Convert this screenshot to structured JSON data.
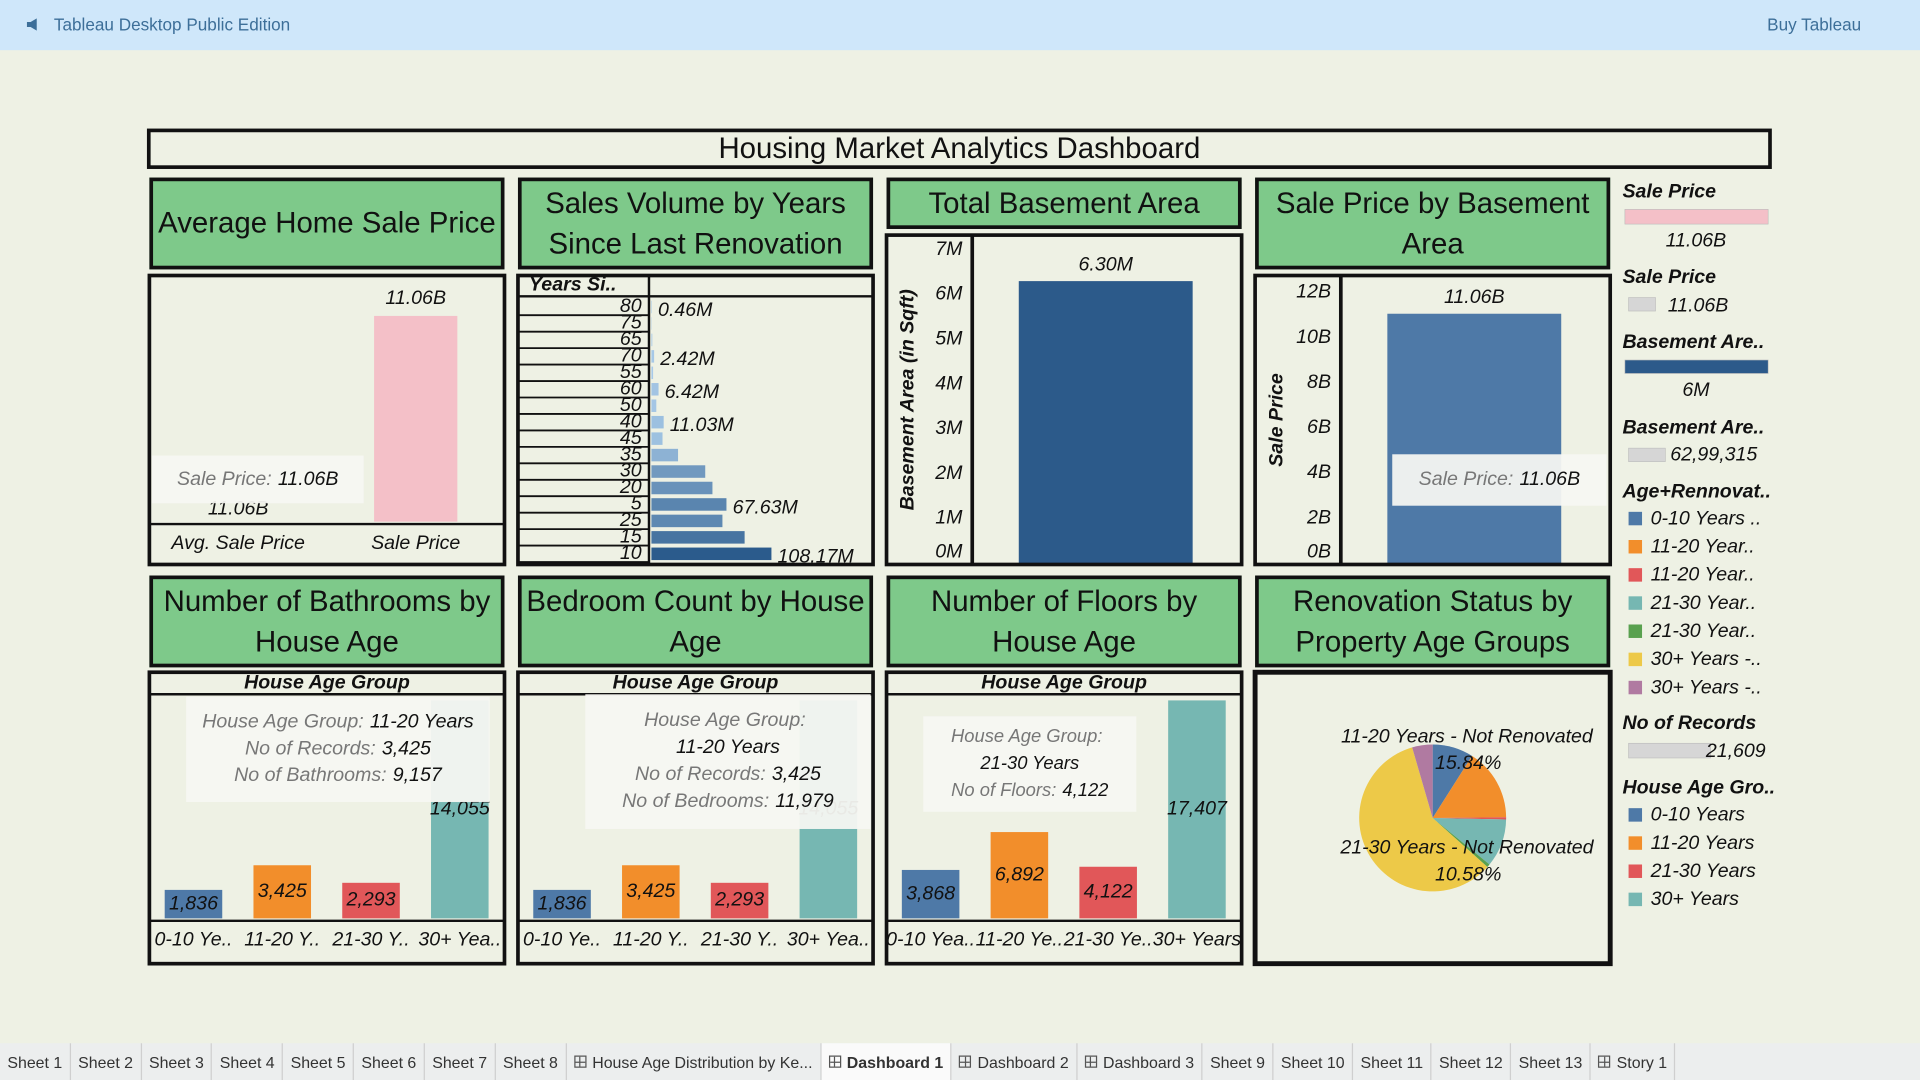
{
  "header": {
    "app": "Tableau Desktop Public Edition",
    "action": "Buy Tableau"
  },
  "dashboard_title": "Housing Market Analytics Dashboard",
  "chart_data": [
    {
      "type": "bar",
      "title": "Average Home Sale Price",
      "categories": [
        "Avg. Sale Price",
        "Sale Price"
      ],
      "values": [
        null,
        11.06
      ],
      "value_labels": [
        "11.06B",
        "11.06B"
      ],
      "color": "#f4c0c8",
      "tooltip": [
        [
          "Sale Price:",
          "11.06B"
        ]
      ]
    },
    {
      "type": "barh",
      "title": "Sales Volume by Years Since Last Renovation",
      "header": "Years Si..",
      "categories": [
        "80",
        "75",
        "65",
        "70",
        "55",
        "60",
        "50",
        "40",
        "45",
        "35",
        "30",
        "20",
        "5",
        "25",
        "15",
        "10"
      ],
      "values": [
        0.46,
        0.3,
        0.8,
        2.42,
        1.5,
        6.42,
        4.4,
        11.03,
        10,
        24,
        48.5,
        55,
        67.63,
        64,
        84,
        108.17
      ],
      "value_labels": [
        "0.46M",
        null,
        null,
        "2.42M",
        null,
        "6.42M",
        null,
        "11.03M",
        null,
        null,
        null,
        null,
        "67.63M",
        null,
        null,
        "108.17M"
      ],
      "color_range": [
        "#a9cbe9",
        "#2b5b8c"
      ]
    },
    {
      "type": "bar",
      "title": "Total Basement Area",
      "ylabel": "Basement Area (in Sqft)",
      "categories": [
        null
      ],
      "values": [
        6.3
      ],
      "value_labels": [
        "6.30M"
      ],
      "color": "#2c5a8a",
      "ylim": [
        0,
        7.3
      ],
      "yticks": [
        {
          "value": 0,
          "label": "0M"
        },
        {
          "value": 1,
          "label": "1M"
        },
        {
          "value": 2,
          "label": "2M"
        },
        {
          "value": 3,
          "label": "3M"
        },
        {
          "value": 4,
          "label": "4M"
        },
        {
          "value": 5,
          "label": "5M"
        },
        {
          "value": 6,
          "label": "6M"
        },
        {
          "value": 7,
          "label": "7M"
        }
      ]
    },
    {
      "type": "bar",
      "title": "Sale Price by Basement Area",
      "ylabel": "Sale Price",
      "categories": [
        null
      ],
      "values": [
        11.06
      ],
      "value_labels": [
        "11.06B"
      ],
      "color": "#4e79a7",
      "ylim": [
        0,
        12.7
      ],
      "yticks": [
        {
          "value": 0,
          "label": "0B"
        },
        {
          "value": 2,
          "label": "2B"
        },
        {
          "value": 4,
          "label": "4B"
        },
        {
          "value": 6,
          "label": "6B"
        },
        {
          "value": 8,
          "label": "8B"
        },
        {
          "value": 10,
          "label": "10B"
        },
        {
          "value": 12,
          "label": "12B"
        }
      ],
      "tooltip": [
        [
          "Sale Price:",
          "11.06B"
        ]
      ]
    },
    {
      "type": "bar",
      "title": "Number of Bathrooms by House Age",
      "header": "House Age Group",
      "categories": [
        "0-10 Ye..",
        "11-20 Y..",
        "21-30 Y..",
        "30+ Yea.."
      ],
      "values": [
        1836,
        3425,
        2293,
        14055
      ],
      "value_labels": [
        "1,836",
        "3,425",
        "2,293",
        "14,055"
      ],
      "colors": [
        "#4e79a7",
        "#f28e2b",
        "#e15759",
        "#76b7b2"
      ],
      "tooltip": [
        [
          "House Age Group:",
          "11-20 Years"
        ],
        [
          "No of Records:",
          "3,425"
        ],
        [
          "No of Bathrooms:",
          "9,157"
        ]
      ]
    },
    {
      "type": "bar",
      "title": "Bedroom Count by House Age",
      "header": "House Age Group",
      "categories": [
        "0-10 Ye..",
        "11-20 Y..",
        "21-30 Y..",
        "30+ Yea.."
      ],
      "values": [
        1836,
        3425,
        2293,
        14055
      ],
      "value_labels": [
        "1,836",
        "3,425",
        "2,293",
        "14,055"
      ],
      "colors": [
        "#4e79a7",
        "#f28e2b",
        "#e15759",
        "#76b7b2"
      ],
      "tooltip": [
        [
          "House Age Group:",
          "11-20 Years"
        ],
        [
          "No of Records:",
          "3,425"
        ],
        [
          "No of Bedrooms:",
          "11,979"
        ]
      ]
    },
    {
      "type": "bar",
      "title": "Number of Floors by House Age",
      "header": "House Age Group",
      "categories": [
        "0-10 Yea..",
        "11-20 Ye..",
        "21-30 Ye..",
        "30+ Years"
      ],
      "values": [
        3868,
        6892,
        4122,
        17407
      ],
      "value_labels": [
        "3,868",
        "6,892",
        "4,122",
        "17,407"
      ],
      "colors": [
        "#4e79a7",
        "#f28e2b",
        "#e15759",
        "#76b7b2"
      ],
      "tooltip": [
        [
          "House Age Group:",
          "21-30 Years"
        ],
        [
          "No of Floors:",
          "4,122"
        ]
      ]
    },
    {
      "type": "pie",
      "title": "Renovation Status by Property Age Groups",
      "categories": [
        "0-10 Years ..",
        "11-20 Year..",
        "11-20 Year..",
        "21-30 Year..",
        "21-30 Year..",
        "30+ Years -..",
        "30+ Years -.."
      ],
      "values": [
        9.0,
        15.84,
        0.5,
        10.58,
        0.7,
        58.88,
        4.5
      ],
      "value_labels": [
        null,
        "15.84%",
        null,
        "10.58%",
        null,
        null,
        null
      ],
      "slice_labels": [
        null,
        "11-20 Years - Not Renovated",
        null,
        "21-30 Years - Not Renovated",
        null,
        null,
        null
      ],
      "colors": [
        "#4e79a7",
        "#f28e2b",
        "#e15759",
        "#76b7b2",
        "#59a14f",
        "#edc948",
        "#b07aa1"
      ]
    }
  ],
  "legends": [
    {
      "title": "Sale Price",
      "color": "#f4c0c8",
      "label": "11.06B"
    },
    {
      "title": "Sale Price",
      "color": "#d6d6d6",
      "label": "11.06B"
    },
    {
      "title": "Basement Are..",
      "color": "#2c5a8a",
      "label": "6M"
    },
    {
      "title": "Basement Are..",
      "color": "#d6d6d6",
      "label": "62,99,315"
    },
    {
      "title": "Age+Rennovat.."
    },
    {
      "title": "No of Records",
      "color": "#d6d6d6",
      "label": "21,609"
    },
    {
      "title": "House Age Gro..",
      "items": [
        {
          "name": "0-10 Years",
          "color": "#4e79a7"
        },
        {
          "name": "11-20 Years",
          "color": "#f28e2b"
        },
        {
          "name": "21-30 Years",
          "color": "#e15759"
        },
        {
          "name": "30+ Years",
          "color": "#76b7b2"
        }
      ]
    }
  ],
  "tabs": {
    "active": 9,
    "items": [
      {
        "label": "Sheet 1"
      },
      {
        "label": "Sheet 2"
      },
      {
        "label": "Sheet 3"
      },
      {
        "label": "Sheet 4"
      },
      {
        "label": "Sheet 5"
      },
      {
        "label": "Sheet 6"
      },
      {
        "label": "Sheet 7"
      },
      {
        "label": "Sheet 8"
      },
      {
        "label": "House Age Distribution by Ke...",
        "kind": "dashboard"
      },
      {
        "label": "Dashboard 1",
        "kind": "dashboard"
      },
      {
        "label": "Dashboard 2",
        "kind": "dashboard"
      },
      {
        "label": "Dashboard 3",
        "kind": "dashboard"
      },
      {
        "label": "Sheet 9"
      },
      {
        "label": "Sheet 10"
      },
      {
        "label": "Sheet 11"
      },
      {
        "label": "Sheet 12"
      },
      {
        "label": "Sheet 13"
      },
      {
        "label": "Story 1",
        "kind": "story"
      }
    ]
  }
}
